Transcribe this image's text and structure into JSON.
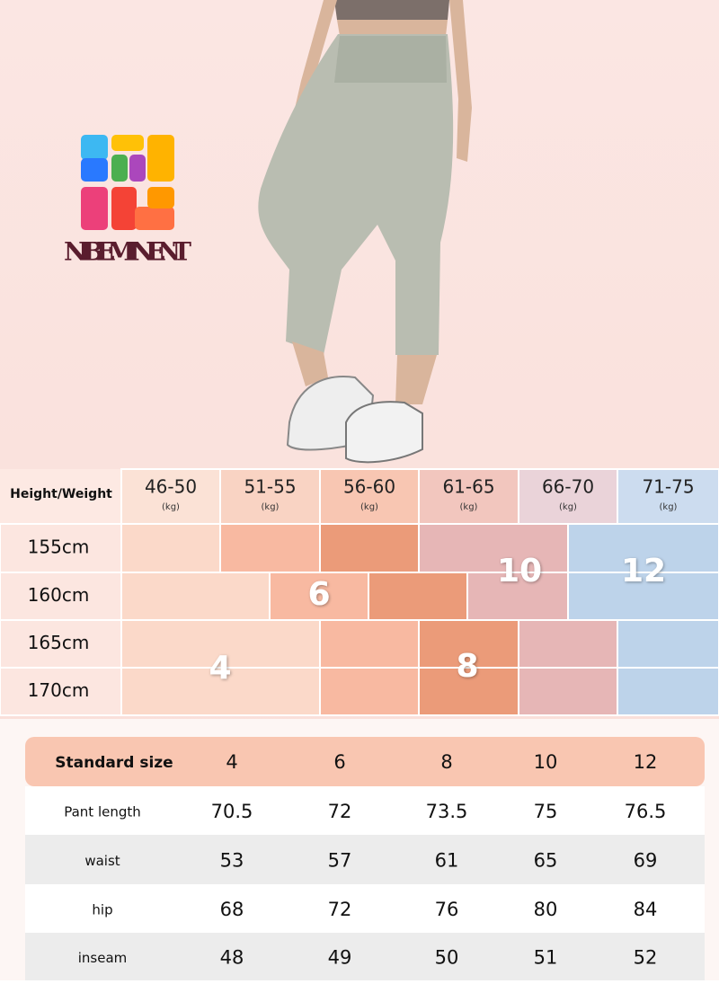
{
  "brand": {
    "name": "NIBEMINENT"
  },
  "size_chart": {
    "corner_label": "Height/Weight",
    "weights": [
      {
        "range": "46-50",
        "unit": "(kg)"
      },
      {
        "range": "51-55",
        "unit": "(kg)"
      },
      {
        "range": "56-60",
        "unit": "(kg)"
      },
      {
        "range": "61-65",
        "unit": "(kg)"
      },
      {
        "range": "66-70",
        "unit": "(kg)"
      },
      {
        "range": "71-75",
        "unit": "(kg)"
      }
    ],
    "heights": [
      "155cm",
      "160cm",
      "165cm",
      "170cm"
    ],
    "sizes": [
      "4",
      "6",
      "8",
      "10",
      "12"
    ]
  },
  "size_table": {
    "header": [
      "Standard size",
      "4",
      "6",
      "8",
      "10",
      "12"
    ],
    "rows": [
      [
        "Pant length",
        "70.5",
        "72",
        "73.5",
        "75",
        "76.5"
      ],
      [
        "waist",
        "53",
        "57",
        "61",
        "65",
        "69"
      ],
      [
        "hip",
        "68",
        "72",
        "76",
        "80",
        "84"
      ],
      [
        "inseam",
        "48",
        "49",
        "50",
        "51",
        "52"
      ]
    ]
  }
}
